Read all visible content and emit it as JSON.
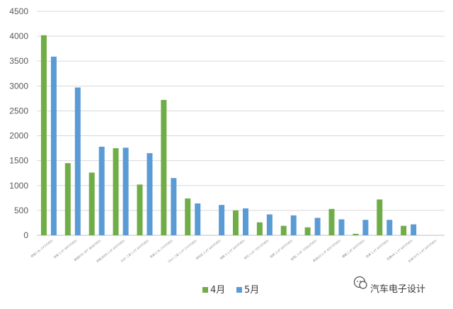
{
  "chart_data": {
    "type": "bar",
    "categories": [
      "缤智1.8L CVT(FWD)",
      "宝骏 1.5T 6MT(FWD)",
      "荣威RX5 20T 自动(FWD)",
      "标致3008 1.6T 6AT(FWD)",
      "SUV 二驱 1.5T 6AT(FWD)",
      "奇骏 2.0L CVT(FWD)",
      "CR-V 二驱 1.5T CVT(FWD)",
      "昂科拉 1.4T 6AT(FWD)",
      "观致 5 1.6T 6AT(FWD)",
      "现代 1.6T 7DCT(FWD)",
      "锐界 2.0T 6AT(FWD)",
      "途观L 1.8T 7DSG(FWD)",
      "奥迪Q3 1.4T 6DCT(FWD)",
      "博越 1.8T 6AT(FWD)",
      "传祺 1.5T 6AT(FWD)",
      "哈弗H6 1.5T 6AT(FWD)",
      "长安CS75 1.8T 6AT(FWD)"
    ],
    "series": [
      {
        "name": "4月",
        "color": "#70ad47",
        "values": [
          4020,
          1450,
          1260,
          1750,
          1020,
          2720,
          740,
          0,
          500,
          260,
          190,
          160,
          530,
          30,
          720,
          190,
          0
        ]
      },
      {
        "name": "5月",
        "color": "#5b9bd5",
        "values": [
          3590,
          2970,
          1780,
          1760,
          1650,
          1150,
          640,
          610,
          540,
          420,
          400,
          350,
          320,
          310,
          310,
          220,
          0
        ]
      }
    ],
    "ylim": [
      0,
      4500
    ],
    "yticks": [
      0,
      500,
      1000,
      1500,
      2000,
      2500,
      3000,
      3500,
      4000,
      4500
    ],
    "grid": true,
    "legend_position": "bottom"
  },
  "watermark": {
    "text": "汽车电子设计",
    "icon": "wechat-icon"
  }
}
